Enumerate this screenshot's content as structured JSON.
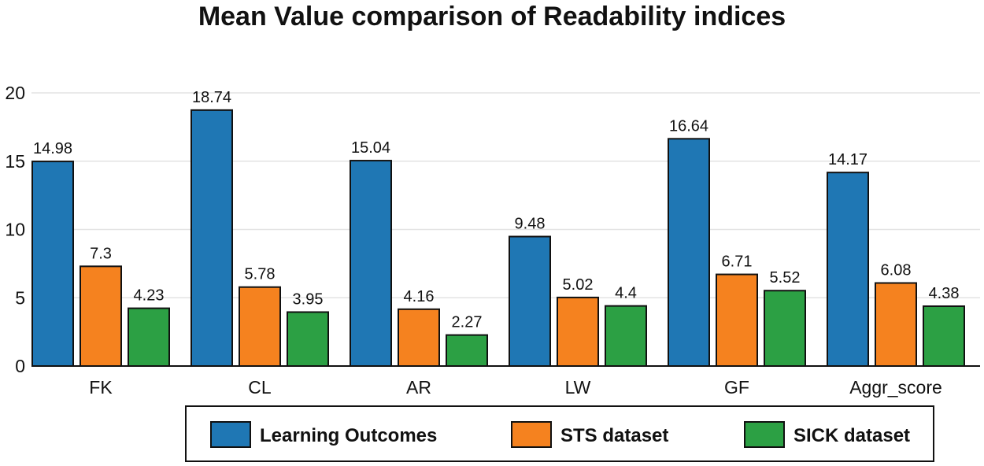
{
  "chart_data": {
    "type": "bar",
    "title": "Mean Value comparison of Readability indices",
    "xlabel": "",
    "ylabel": "",
    "ylim": [
      0,
      20
    ],
    "yticks": [
      0,
      5,
      10,
      15,
      20
    ],
    "grid": true,
    "legend_position": "bottom",
    "categories": [
      "FK",
      "CL",
      "AR",
      "LW",
      "GF",
      "Aggr_score"
    ],
    "series": [
      {
        "name": "Learning Outcomes",
        "color": "#1f77b4",
        "values": [
          14.98,
          18.74,
          15.04,
          9.48,
          16.64,
          14.17
        ]
      },
      {
        "name": "STS dataset",
        "color": "#f5821f",
        "values": [
          7.3,
          5.78,
          4.16,
          5.02,
          6.71,
          6.08
        ]
      },
      {
        "name": "SICK dataset",
        "color": "#2ca044",
        "values": [
          4.23,
          3.95,
          2.27,
          4.4,
          5.52,
          4.38
        ]
      }
    ]
  }
}
